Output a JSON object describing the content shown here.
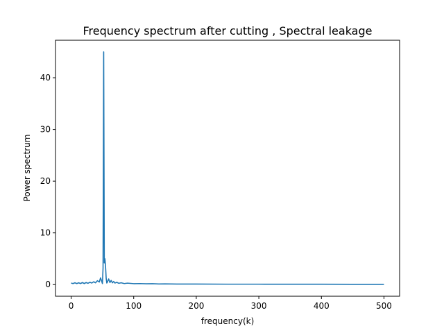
{
  "chart_data": {
    "type": "line",
    "title": "Frequency spectrum after cutting , Spectral leakage",
    "xlabel": "frequency(k)",
    "ylabel": "Power spectrum",
    "xlim": [
      -25,
      525
    ],
    "ylim": [
      -2.25,
      47.25
    ],
    "xticks": [
      0,
      100,
      200,
      300,
      400,
      500
    ],
    "yticks": [
      0,
      10,
      20,
      30,
      40
    ],
    "grid": false,
    "line_color": "#1f77b4",
    "series": [
      {
        "x": [
          0,
          3,
          6,
          9,
          12,
          15,
          18,
          21,
          24,
          27,
          30,
          33,
          36,
          39,
          42,
          45,
          47,
          49,
          50,
          51,
          52,
          53,
          54,
          55,
          56,
          57,
          58,
          60,
          62,
          64,
          66,
          68,
          70,
          73,
          76,
          80,
          85,
          90,
          100,
          110,
          120,
          130,
          140,
          150,
          175,
          200,
          250,
          300,
          350,
          400,
          450,
          500
        ],
        "y": [
          0.3,
          0.2,
          0.35,
          0.2,
          0.35,
          0.2,
          0.4,
          0.2,
          0.4,
          0.25,
          0.45,
          0.3,
          0.55,
          0.35,
          0.75,
          0.5,
          1.3,
          0.6,
          0.2,
          3.2,
          45,
          4.2,
          5.0,
          3.5,
          1.2,
          0.3,
          0.5,
          1.1,
          0.4,
          0.8,
          0.35,
          0.6,
          0.3,
          0.45,
          0.25,
          0.35,
          0.2,
          0.28,
          0.18,
          0.2,
          0.15,
          0.17,
          0.12,
          0.14,
          0.1,
          0.1,
          0.08,
          0.08,
          0.07,
          0.07,
          0.06,
          0.06
        ]
      }
    ]
  }
}
